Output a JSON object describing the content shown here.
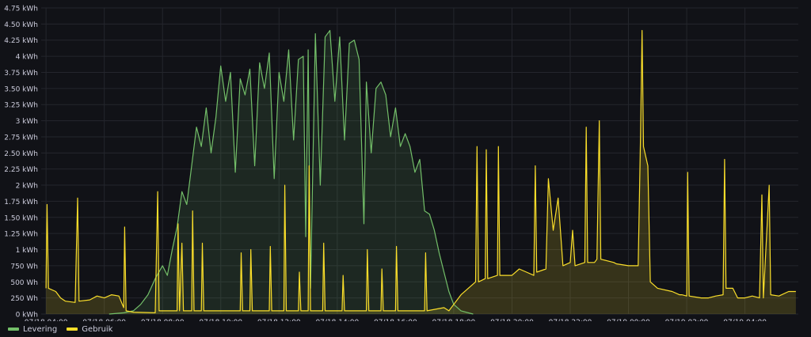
{
  "chart_data": {
    "type": "area",
    "y_unit": "kWh",
    "ylim": [
      0,
      4.75
    ],
    "y_ticks": [
      {
        "value": 0,
        "label": "0 kWh"
      },
      {
        "value": 0.25,
        "label": "250 Wh"
      },
      {
        "value": 0.5,
        "label": "500 Wh"
      },
      {
        "value": 0.75,
        "label": "750 Wh"
      },
      {
        "value": 1,
        "label": "1 kWh"
      },
      {
        "value": 1.25,
        "label": "1.25 kWh"
      },
      {
        "value": 1.5,
        "label": "1.50 kWh"
      },
      {
        "value": 1.75,
        "label": "1.75 kWh"
      },
      {
        "value": 2,
        "label": "2 kWh"
      },
      {
        "value": 2.25,
        "label": "2.25 kWh"
      },
      {
        "value": 2.5,
        "label": "2.50 kWh"
      },
      {
        "value": 2.75,
        "label": "2.75 kWh"
      },
      {
        "value": 3,
        "label": "3 kWh"
      },
      {
        "value": 3.25,
        "label": "3.25 kWh"
      },
      {
        "value": 3.5,
        "label": "3.50 kWh"
      },
      {
        "value": 3.75,
        "label": "3.75 kWh"
      },
      {
        "value": 4,
        "label": "4 kWh"
      },
      {
        "value": 4.25,
        "label": "4.25 kWh"
      },
      {
        "value": 4.5,
        "label": "4.50 kWh"
      },
      {
        "value": 4.75,
        "label": "4.75 kWh"
      }
    ],
    "xlim": [
      "07/18 03:50",
      "07/19 05:50"
    ],
    "x_ticks": [
      {
        "value": "07/18 04:00",
        "label": "07/18 04:00"
      },
      {
        "value": "07/18 06:00",
        "label": "07/18 06:00"
      },
      {
        "value": "07/18 08:00",
        "label": "07/18 08:00"
      },
      {
        "value": "07/18 10:00",
        "label": "07/18 10:00"
      },
      {
        "value": "07/18 12:00",
        "label": "07/18 12:00"
      },
      {
        "value": "07/18 14:00",
        "label": "07/18 14:00"
      },
      {
        "value": "07/18 16:00",
        "label": "07/18 16:00"
      },
      {
        "value": "07/18 18:00",
        "label": "07/18 18:00"
      },
      {
        "value": "07/18 20:00",
        "label": "07/18 20:00"
      },
      {
        "value": "07/18 22:00",
        "label": "07/18 22:00"
      },
      {
        "value": "07/19 00:00",
        "label": "07/19 00:00"
      },
      {
        "value": "07/19 02:00",
        "label": "07/19 02:00"
      },
      {
        "value": "07/19 04:00",
        "label": "07/19 04:00"
      }
    ],
    "grid": true,
    "legend_position": "bottom-left",
    "series": [
      {
        "name": "Levering",
        "color": "#73bf69",
        "fill": "rgba(115,191,105,0.13)",
        "points": [
          [
            "07/18 06:10",
            0
          ],
          [
            "07/18 06:40",
            0.02
          ],
          [
            "07/18 07:00",
            0.05
          ],
          [
            "07/18 07:15",
            0.15
          ],
          [
            "07/18 07:30",
            0.3
          ],
          [
            "07/18 07:45",
            0.55
          ],
          [
            "07/18 08:00",
            0.75
          ],
          [
            "07/18 08:10",
            0.6
          ],
          [
            "07/18 08:20",
            1.0
          ],
          [
            "07/18 08:30",
            1.35
          ],
          [
            "07/18 08:40",
            1.9
          ],
          [
            "07/18 08:50",
            1.7
          ],
          [
            "07/18 09:00",
            2.3
          ],
          [
            "07/18 09:10",
            2.9
          ],
          [
            "07/18 09:20",
            2.6
          ],
          [
            "07/18 09:30",
            3.2
          ],
          [
            "07/18 09:40",
            2.5
          ],
          [
            "07/18 09:50",
            3.05
          ],
          [
            "07/18 10:00",
            3.85
          ],
          [
            "07/18 10:10",
            3.3
          ],
          [
            "07/18 10:20",
            3.75
          ],
          [
            "07/18 10:30",
            2.2
          ],
          [
            "07/18 10:40",
            3.65
          ],
          [
            "07/18 10:50",
            3.4
          ],
          [
            "07/18 11:00",
            3.8
          ],
          [
            "07/18 11:10",
            2.3
          ],
          [
            "07/18 11:20",
            3.9
          ],
          [
            "07/18 11:30",
            3.5
          ],
          [
            "07/18 11:40",
            4.05
          ],
          [
            "07/18 11:50",
            2.1
          ],
          [
            "07/18 12:00",
            3.75
          ],
          [
            "07/18 12:10",
            3.3
          ],
          [
            "07/18 12:20",
            4.1
          ],
          [
            "07/18 12:30",
            2.7
          ],
          [
            "07/18 12:40",
            3.95
          ],
          [
            "07/18 12:50",
            4.0
          ],
          [
            "07/18 12:55",
            1.2
          ],
          [
            "07/18 13:00",
            4.1
          ],
          [
            "07/18 13:05",
            0.4
          ],
          [
            "07/18 13:15",
            4.35
          ],
          [
            "07/18 13:25",
            2.0
          ],
          [
            "07/18 13:35",
            4.3
          ],
          [
            "07/18 13:45",
            4.4
          ],
          [
            "07/18 13:55",
            3.3
          ],
          [
            "07/18 14:05",
            4.3
          ],
          [
            "07/18 14:15",
            2.7
          ],
          [
            "07/18 14:25",
            4.2
          ],
          [
            "07/18 14:35",
            4.25
          ],
          [
            "07/18 14:45",
            3.95
          ],
          [
            "07/18 14:55",
            1.4
          ],
          [
            "07/18 15:00",
            3.6
          ],
          [
            "07/18 15:10",
            2.5
          ],
          [
            "07/18 15:20",
            3.5
          ],
          [
            "07/18 15:30",
            3.6
          ],
          [
            "07/18 15:40",
            3.4
          ],
          [
            "07/18 15:50",
            2.75
          ],
          [
            "07/18 16:00",
            3.2
          ],
          [
            "07/18 16:10",
            2.6
          ],
          [
            "07/18 16:20",
            2.8
          ],
          [
            "07/18 16:30",
            2.6
          ],
          [
            "07/18 16:40",
            2.2
          ],
          [
            "07/18 16:50",
            2.4
          ],
          [
            "07/18 17:00",
            1.6
          ],
          [
            "07/18 17:10",
            1.55
          ],
          [
            "07/18 17:20",
            1.3
          ],
          [
            "07/18 17:30",
            0.95
          ],
          [
            "07/18 17:40",
            0.65
          ],
          [
            "07/18 17:50",
            0.35
          ],
          [
            "07/18 18:00",
            0.15
          ],
          [
            "07/18 18:15",
            0.05
          ],
          [
            "07/18 18:40",
            0
          ]
        ]
      },
      {
        "name": "Gebruik",
        "color": "#fade2a",
        "fill": "rgba(250,222,42,0.16)",
        "points": [
          [
            "07/18 04:00",
            0.4
          ],
          [
            "07/18 04:02",
            1.7
          ],
          [
            "07/18 04:05",
            0.4
          ],
          [
            "07/18 04:20",
            0.35
          ],
          [
            "07/18 04:30",
            0.25
          ],
          [
            "07/18 04:40",
            0.2
          ],
          [
            "07/18 05:00",
            0.18
          ],
          [
            "07/18 05:05",
            1.8
          ],
          [
            "07/18 05:08",
            0.2
          ],
          [
            "07/18 05:30",
            0.22
          ],
          [
            "07/18 05:45",
            0.28
          ],
          [
            "07/18 06:00",
            0.25
          ],
          [
            "07/18 06:15",
            0.3
          ],
          [
            "07/18 06:30",
            0.28
          ],
          [
            "07/18 06:40",
            0.1
          ],
          [
            "07/18 06:42",
            1.35
          ],
          [
            "07/18 06:45",
            0.05
          ],
          [
            "07/18 07:00",
            0.03
          ],
          [
            "07/18 07:45",
            0.02
          ],
          [
            "07/18 07:50",
            1.9
          ],
          [
            "07/18 07:53",
            0.05
          ],
          [
            "07/18 08:30",
            0.05
          ],
          [
            "07/18 08:32",
            1.4
          ],
          [
            "07/18 08:35",
            0.05
          ],
          [
            "07/18 08:40",
            1.1
          ],
          [
            "07/18 08:43",
            0.05
          ],
          [
            "07/18 09:00",
            0.05
          ],
          [
            "07/18 09:02",
            1.6
          ],
          [
            "07/18 09:05",
            0.05
          ],
          [
            "07/18 09:20",
            0.05
          ],
          [
            "07/18 09:22",
            1.1
          ],
          [
            "07/18 09:25",
            0.05
          ],
          [
            "07/18 10:40",
            0.05
          ],
          [
            "07/18 10:42",
            0.95
          ],
          [
            "07/18 10:45",
            0.05
          ],
          [
            "07/18 11:00",
            0.05
          ],
          [
            "07/18 11:02",
            1.0
          ],
          [
            "07/18 11:05",
            0.05
          ],
          [
            "07/18 11:40",
            0.05
          ],
          [
            "07/18 11:42",
            1.05
          ],
          [
            "07/18 11:45",
            0.05
          ],
          [
            "07/18 12:10",
            0.05
          ],
          [
            "07/18 12:12",
            2.0
          ],
          [
            "07/18 12:15",
            0.05
          ],
          [
            "07/18 12:40",
            0.05
          ],
          [
            "07/18 12:42",
            0.65
          ],
          [
            "07/18 12:45",
            0.05
          ],
          [
            "07/18 13:00",
            0.05
          ],
          [
            "07/18 13:02",
            2.3
          ],
          [
            "07/18 13:05",
            0.05
          ],
          [
            "07/18 13:30",
            0.05
          ],
          [
            "07/18 13:32",
            1.1
          ],
          [
            "07/18 13:35",
            0.05
          ],
          [
            "07/18 14:10",
            0.05
          ],
          [
            "07/18 14:12",
            0.6
          ],
          [
            "07/18 14:15",
            0.05
          ],
          [
            "07/18 15:00",
            0.05
          ],
          [
            "07/18 15:02",
            1.0
          ],
          [
            "07/18 15:05",
            0.05
          ],
          [
            "07/18 15:30",
            0.05
          ],
          [
            "07/18 15:32",
            0.7
          ],
          [
            "07/18 15:35",
            0.05
          ],
          [
            "07/18 16:00",
            0.05
          ],
          [
            "07/18 16:02",
            1.05
          ],
          [
            "07/18 16:05",
            0.05
          ],
          [
            "07/18 17:00",
            0.05
          ],
          [
            "07/18 17:02",
            0.95
          ],
          [
            "07/18 17:05",
            0.05
          ],
          [
            "07/18 17:40",
            0.1
          ],
          [
            "07/18 17:50",
            0.05
          ],
          [
            "07/18 18:00",
            0.15
          ],
          [
            "07/18 18:15",
            0.3
          ],
          [
            "07/18 18:30",
            0.4
          ],
          [
            "07/18 18:45",
            0.5
          ],
          [
            "07/18 18:48",
            2.6
          ],
          [
            "07/18 18:51",
            0.5
          ],
          [
            "07/18 19:05",
            0.55
          ],
          [
            "07/18 19:07",
            2.55
          ],
          [
            "07/18 19:10",
            0.55
          ],
          [
            "07/18 19:30",
            0.6
          ],
          [
            "07/18 19:32",
            2.6
          ],
          [
            "07/18 19:35",
            0.6
          ],
          [
            "07/18 20:00",
            0.6
          ],
          [
            "07/18 20:15",
            0.7
          ],
          [
            "07/18 20:30",
            0.65
          ],
          [
            "07/18 20:45",
            0.6
          ],
          [
            "07/18 20:48",
            2.3
          ],
          [
            "07/18 20:51",
            0.65
          ],
          [
            "07/18 21:10",
            0.7
          ],
          [
            "07/18 21:15",
            2.1
          ],
          [
            "07/18 21:25",
            1.3
          ],
          [
            "07/18 21:35",
            1.8
          ],
          [
            "07/18 21:45",
            0.75
          ],
          [
            "07/18 22:00",
            0.8
          ],
          [
            "07/18 22:05",
            1.3
          ],
          [
            "07/18 22:10",
            0.75
          ],
          [
            "07/18 22:30",
            0.8
          ],
          [
            "07/18 22:33",
            2.9
          ],
          [
            "07/18 22:36",
            0.8
          ],
          [
            "07/18 22:50",
            0.8
          ],
          [
            "07/18 22:55",
            0.85
          ],
          [
            "07/18 23:00",
            3.0
          ],
          [
            "07/18 23:03",
            0.85
          ],
          [
            "07/18 23:30",
            0.8
          ],
          [
            "07/18 23:35",
            0.78
          ],
          [
            "07/19 00:00",
            0.75
          ],
          [
            "07/19 00:20",
            0.75
          ],
          [
            "07/19 00:25",
            2.8
          ],
          [
            "07/19 00:28",
            4.4
          ],
          [
            "07/19 00:31",
            2.6
          ],
          [
            "07/19 00:40",
            2.3
          ],
          [
            "07/19 00:45",
            0.5
          ],
          [
            "07/19 01:00",
            0.4
          ],
          [
            "07/19 01:30",
            0.35
          ],
          [
            "07/19 01:45",
            0.3
          ],
          [
            "07/19 01:50",
            0.3
          ],
          [
            "07/19 02:00",
            0.28
          ],
          [
            "07/19 02:02",
            2.2
          ],
          [
            "07/19 02:05",
            0.28
          ],
          [
            "07/19 02:30",
            0.25
          ],
          [
            "07/19 02:45",
            0.25
          ],
          [
            "07/19 03:00",
            0.28
          ],
          [
            "07/19 03:15",
            0.3
          ],
          [
            "07/19 03:18",
            2.4
          ],
          [
            "07/19 03:21",
            0.4
          ],
          [
            "07/19 03:35",
            0.4
          ],
          [
            "07/19 03:45",
            0.25
          ],
          [
            "07/19 04:00",
            0.25
          ],
          [
            "07/19 04:15",
            0.28
          ],
          [
            "07/19 04:30",
            0.25
          ],
          [
            "07/19 04:35",
            1.85
          ],
          [
            "07/19 04:38",
            0.25
          ],
          [
            "07/19 04:50",
            2.0
          ],
          [
            "07/19 04:53",
            0.3
          ],
          [
            "07/19 05:10",
            0.28
          ],
          [
            "07/19 05:30",
            0.35
          ],
          [
            "07/19 05:45",
            0.35
          ]
        ]
      }
    ]
  }
}
